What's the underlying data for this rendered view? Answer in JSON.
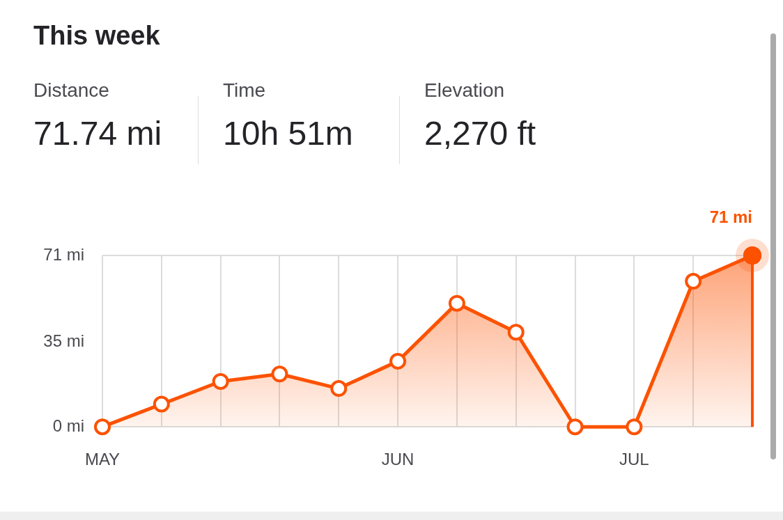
{
  "chart_data": [
    {
      "type": "other",
      "title": "This week",
      "annotations": [
        "Distance",
        "71.74 mi",
        "Time",
        "10h 51m",
        "Elevation",
        "2,270 ft"
      ]
    },
    {
      "type": "area",
      "categories": [
        "MAY",
        null,
        null,
        null,
        null,
        "JUN",
        null,
        null,
        null,
        "JUL",
        null,
        null
      ],
      "series": [
        {
          "color": "#fc5200",
          "values": [
            0,
            9.4,
            18.8,
            21.9,
            15.9,
            27.2,
            51.2,
            39.2,
            0,
            0,
            60.3,
            71
          ]
        }
      ],
      "ylim": [
        0,
        71
      ],
      "yticks": [
        {
          "value": 0,
          "label": "0 mi"
        },
        {
          "value": 35,
          "label": "35 mi"
        },
        {
          "value": 71,
          "label": "71 mi"
        }
      ],
      "grid": "x",
      "legend": false,
      "marker": "circle",
      "annotations": [
        "71 mi"
      ]
    }
  ]
}
